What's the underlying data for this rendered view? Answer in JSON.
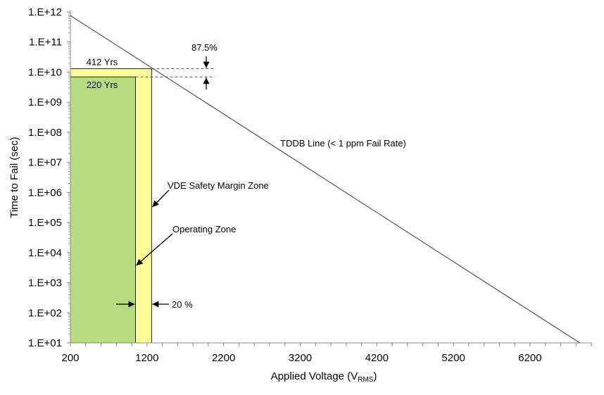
{
  "chart_data": {
    "type": "line",
    "title": "",
    "xlabel": "Applied Voltage (V",
    "xlabel_sub": "RMS",
    "xlabel_end": ")",
    "ylabel": "Time to Fail (sec)",
    "xlim": [
      200,
      7000
    ],
    "ylim": [
      10,
      1000000000000.0
    ],
    "yscale": "log",
    "x_ticks": [
      "200",
      "1200",
      "2200",
      "3200",
      "4200",
      "5200",
      "6200"
    ],
    "x_tick_values": [
      200,
      1200,
      2200,
      3200,
      4200,
      5200,
      6200
    ],
    "y_ticks": [
      "1.E+12",
      "1.E+11",
      "1.E+10",
      "1.E+09",
      "1.E+08",
      "1.E+07",
      "1.E+06",
      "1.E+05",
      "1.E+04",
      "1.E+03",
      "1.E+02",
      "1.E+01"
    ],
    "y_tick_exponents": [
      12,
      11,
      10,
      9,
      8,
      7,
      6,
      5,
      4,
      3,
      2,
      1
    ],
    "grid": false,
    "series": [
      {
        "name": "TDDB  Line  (< 1 ppm Fail Rate)",
        "x": [
          200,
          6850
        ],
        "y": [
          760000000000.0,
          10
        ],
        "color": "#555555"
      }
    ],
    "zones": [
      {
        "name": "VDE Safety Margin Zone",
        "x": [
          200,
          1260
        ],
        "top": 13000000000.0,
        "label": "412 Yrs",
        "color": "#ffff99"
      },
      {
        "name": "Operating  Zone",
        "x": [
          200,
          1050
        ],
        "top": 6940000000.0,
        "label": "220 Yrs",
        "color": "#b7dd80"
      }
    ],
    "annotations": {
      "margin_v": "20 %",
      "margin_t": "87.5%"
    }
  }
}
